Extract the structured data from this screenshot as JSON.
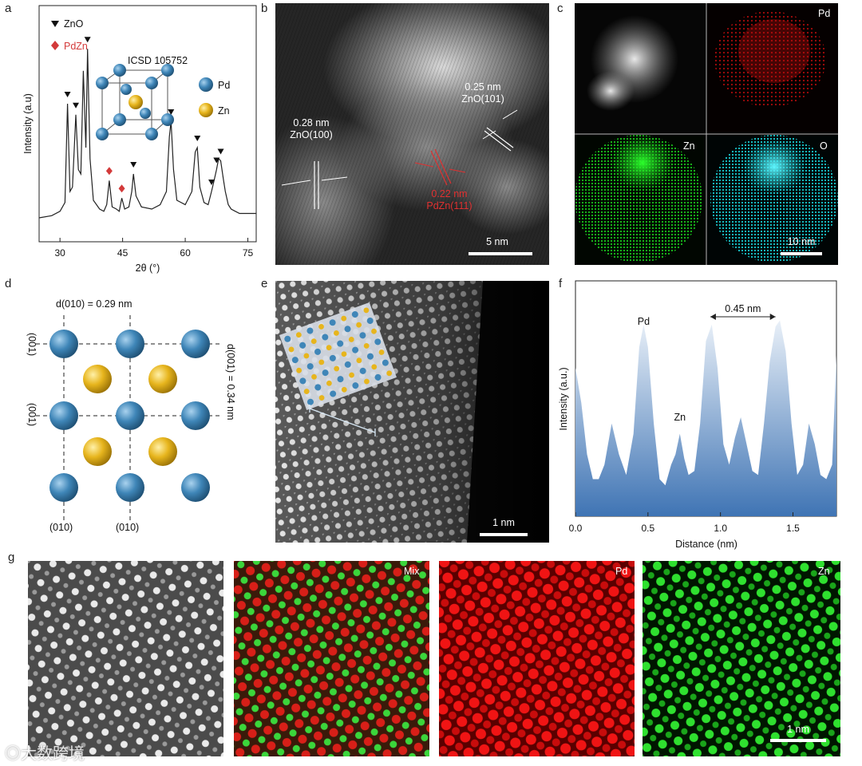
{
  "panels": {
    "a": "a",
    "b": "b",
    "c": "c",
    "d": "d",
    "e": "e",
    "f": "f",
    "g": "g"
  },
  "a": {
    "legend_zno": "ZnO",
    "legend_pdzn": "PdZn",
    "icsd": "ICSD 105752",
    "legend_pd": "Pd",
    "legend_zn": "Zn",
    "ylabel": "Intensity (a.u)",
    "xlabel": "2θ (°)",
    "xticks": [
      "30",
      "45",
      "60",
      "75"
    ],
    "colors": {
      "zno_marker": "#111111",
      "pdzn_marker": "#d33a3a",
      "pd_atom": "#3f86b8",
      "zn_atom": "#e7b51d"
    }
  },
  "b": {
    "label_1_d": "0.28 nm",
    "label_1_plane": "ZnO(100)",
    "label_2_d": "0.25 nm",
    "label_2_plane": "ZnO(101)",
    "label_3_d": "0.22 nm",
    "label_3_plane": "PdZn(111)",
    "scale": "5 nm"
  },
  "c": {
    "pd": "Pd",
    "zn": "Zn",
    "o": "O",
    "scale": "10 nm",
    "colors": {
      "pd": "#c40d0d",
      "zn": "#18c21a",
      "o": "#18c9cf"
    }
  },
  "d": {
    "top": "d(010) = 0.29 nm",
    "right": "d(001) = 0.34 nm",
    "left_1": "(001)",
    "left_2": "(001)",
    "bottom_1": "(010)",
    "bottom_2": "(010)"
  },
  "e": {
    "scale": "1 nm"
  },
  "f": {
    "pd": "Pd",
    "zn": "Zn",
    "spacing": "0.45 nm",
    "ylabel": "Intensity (a.u.)",
    "xlabel": "Distance (nm)",
    "xticks": [
      "0.0",
      "0.5",
      "1.0",
      "1.5"
    ]
  },
  "g": {
    "mix": "Mix",
    "pd": "Pd",
    "zn": "Zn",
    "scale": "1 nm"
  },
  "watermark": "大数跨境",
  "chart_data": [
    {
      "type": "line",
      "title": "",
      "xlabel": "2θ (°)",
      "ylabel": "Intensity (a.u)",
      "xlim": [
        25,
        77
      ],
      "ylim": [
        0,
        100
      ],
      "x": [
        25,
        28,
        30,
        31.2,
        31.8,
        32.4,
        33,
        33.8,
        34.4,
        35,
        35.6,
        36.2,
        36.6,
        37.2,
        38,
        39.5,
        40.5,
        41.2,
        41.8,
        42.5,
        43.5,
        44.2,
        44.8,
        45.5,
        46.5,
        47.2,
        47.6,
        48.2,
        49.5,
        52,
        54,
        55.5,
        56.2,
        56.6,
        57.2,
        58,
        60,
        61.6,
        62.4,
        62.9,
        63.5,
        64.5,
        65.5,
        66.3,
        66.8,
        67.5,
        68,
        68.5,
        69.1,
        69.6,
        70.3,
        71,
        72,
        73,
        75,
        77
      ],
      "y": [
        8,
        9,
        11,
        15,
        60,
        20,
        22,
        55,
        30,
        28,
        75,
        40,
        85,
        35,
        16,
        12,
        11,
        14,
        25,
        13,
        12,
        11,
        17,
        12,
        13,
        20,
        28,
        18,
        13,
        12,
        14,
        20,
        45,
        52,
        30,
        16,
        14,
        20,
        38,
        40,
        22,
        15,
        14,
        20,
        24,
        30,
        35,
        34,
        26,
        20,
        14,
        12,
        11,
        10,
        10,
        10
      ],
      "markers": [
        {
          "label": "ZnO",
          "x": [
            31.8,
            33.8,
            36.6,
            47.6,
            56.6,
            62.9,
            66.3,
            67.5,
            68.5
          ]
        },
        {
          "label": "PdZn",
          "x": [
            41.8,
            44.8
          ]
        }
      ]
    },
    {
      "type": "line",
      "title": "",
      "xlabel": "Distance (nm)",
      "ylabel": "Intensity (a.u.)",
      "xlim": [
        0,
        1.8
      ],
      "ylim": [
        0,
        100
      ],
      "x": [
        0,
        0.04,
        0.08,
        0.12,
        0.16,
        0.2,
        0.25,
        0.3,
        0.35,
        0.4,
        0.44,
        0.47,
        0.5,
        0.54,
        0.58,
        0.62,
        0.66,
        0.69,
        0.72,
        0.75,
        0.78,
        0.82,
        0.86,
        0.9,
        0.94,
        0.98,
        1.02,
        1.06,
        1.1,
        1.14,
        1.18,
        1.22,
        1.26,
        1.3,
        1.34,
        1.38,
        1.41,
        1.45,
        1.49,
        1.53,
        1.57,
        1.61,
        1.65,
        1.69,
        1.73,
        1.77,
        1.8
      ],
      "y": [
        72,
        55,
        30,
        18,
        18,
        25,
        45,
        30,
        20,
        40,
        82,
        93,
        82,
        45,
        18,
        15,
        25,
        30,
        40,
        28,
        20,
        22,
        45,
        85,
        93,
        72,
        35,
        25,
        38,
        48,
        35,
        22,
        20,
        45,
        75,
        92,
        95,
        80,
        45,
        20,
        25,
        45,
        35,
        20,
        18,
        25,
        78
      ],
      "annotations": [
        {
          "text": "Pd",
          "x": 0.47
        },
        {
          "text": "Zn",
          "x": 0.72
        },
        {
          "text": "0.45 nm",
          "x": [
            0.93,
            1.38
          ]
        }
      ]
    }
  ]
}
